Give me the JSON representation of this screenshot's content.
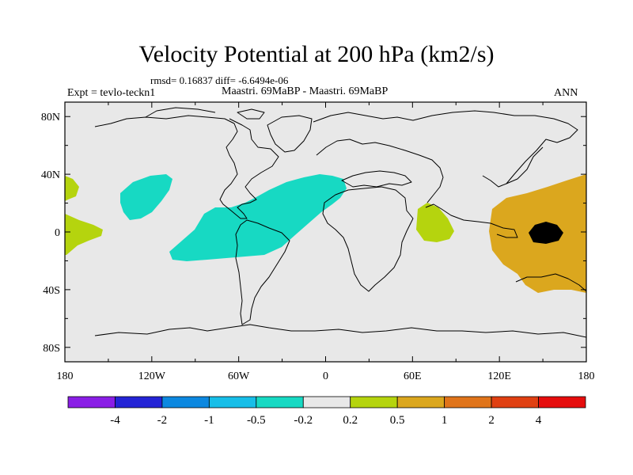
{
  "title": "Velocity Potential at 200 hPa (km2/s)",
  "stats_line": "rmsd= 0.16837 diff= -6.6494e-06",
  "left_label": "Expt = tevlo-teckn1",
  "center_label": "Maastri.  69MaBP - Maastri.  69MaBP",
  "right_label": "ANN",
  "map": {
    "lon_range": [
      -180,
      180
    ],
    "lat_range": [
      -90,
      90
    ],
    "lon_tick_labels": [
      "180",
      "120W",
      "60W",
      "0",
      "60E",
      "120E",
      "180"
    ],
    "lon_tick_values": [
      -180,
      -120,
      -60,
      0,
      60,
      120,
      180
    ],
    "lat_tick_labels": [
      "80N",
      "40N",
      "0",
      "40S",
      "80S"
    ],
    "lat_tick_values": [
      80,
      40,
      0,
      -40,
      -80
    ],
    "background_color": "#e8e8e8",
    "regions": [
      {
        "name": "central-pacific-positive-west",
        "level": "0.2 to 0.5",
        "color": "#b5d40e"
      },
      {
        "name": "north-pacific-positive",
        "level": "0.2 to 0.5",
        "color": "#b5d40e"
      },
      {
        "name": "atlantic-negative-band",
        "level": "-0.5 to -0.2",
        "color": "#17d9c3"
      },
      {
        "name": "indian-ocean-negative",
        "level": "-0.5 to -0.2",
        "color": "#17d9c3"
      },
      {
        "name": "west-pacific-positive",
        "level": "0.2 to 0.5",
        "color": "#b5d40e"
      },
      {
        "name": "west-pacific-maximum",
        "level": "0.5 to 1",
        "color": "#dba71e"
      }
    ]
  },
  "colorbar": {
    "colors": [
      "#8a1ee6",
      "#2424d6",
      "#0c88e0",
      "#17bee8",
      "#17d9c3",
      "#e8e8e8",
      "#b5d40e",
      "#dba71e",
      "#e0741a",
      "#e04012",
      "#e60d0d"
    ],
    "labels": [
      "-4",
      "-2",
      "-1",
      "-0.5",
      "-0.2",
      "0.2",
      "0.5",
      "1",
      "2",
      "4"
    ]
  }
}
